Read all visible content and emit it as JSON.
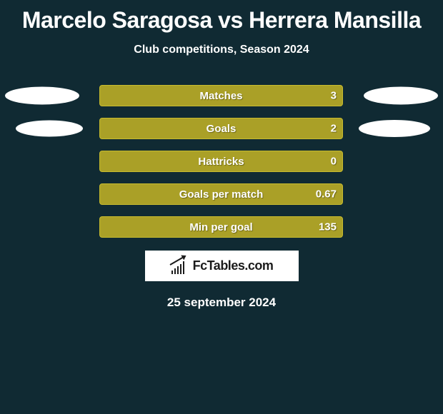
{
  "title": "Marcelo Saragosa vs Herrera Mansilla",
  "subtitle": "Club competitions, Season 2024",
  "colors": {
    "background": "#102a33",
    "bar_fill": "#aaa027",
    "bar_border": "#c7bb2e",
    "text": "#ffffff",
    "logo_bg": "#ffffff",
    "logo_fg": "#1b1b1b"
  },
  "stats": [
    {
      "label": "Matches",
      "right_value": "3"
    },
    {
      "label": "Goals",
      "right_value": "2"
    },
    {
      "label": "Hattricks",
      "right_value": "0"
    },
    {
      "label": "Goals per match",
      "right_value": "0.67"
    },
    {
      "label": "Min per goal",
      "right_value": "135"
    }
  ],
  "ellipses": {
    "row0": {
      "left": true,
      "right": true
    },
    "row1": {
      "left": true,
      "right": true
    }
  },
  "logo_text": "FcTables.com",
  "date": "25 september 2024"
}
